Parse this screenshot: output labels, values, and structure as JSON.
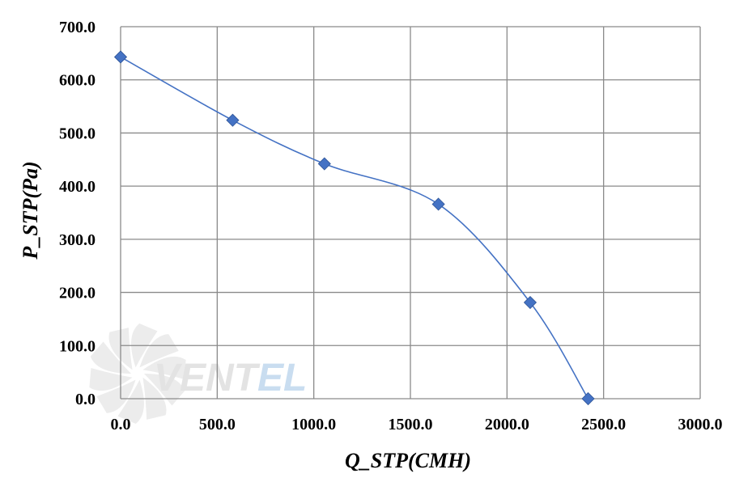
{
  "chart_data": {
    "type": "line",
    "title": "",
    "xlabel": "Q_STP(CMH)",
    "ylabel": "P_STP(Pa)",
    "xlim": [
      0,
      3000
    ],
    "ylim": [
      0,
      700
    ],
    "xticks": [
      "0.0",
      "500.0",
      "1000.0",
      "1500.0",
      "2000.0",
      "2500.0",
      "3000.0"
    ],
    "yticks": [
      "0.0",
      "100.0",
      "200.0",
      "300.0",
      "400.0",
      "500.0",
      "600.0",
      "700.0"
    ],
    "grid": true,
    "legend": "none",
    "smooth": true,
    "marker": "diamond",
    "series": [
      {
        "x": [
          0,
          580,
          1055,
          1645,
          2120,
          2420
        ],
        "y": [
          643,
          524,
          442,
          366,
          181,
          0
        ],
        "color": "#4472C4"
      }
    ]
  },
  "watermark": {
    "text_main": "VENT",
    "text_accent": "EL",
    "main_color": "#e3e3e3",
    "accent_color": "#c9ddf0"
  }
}
